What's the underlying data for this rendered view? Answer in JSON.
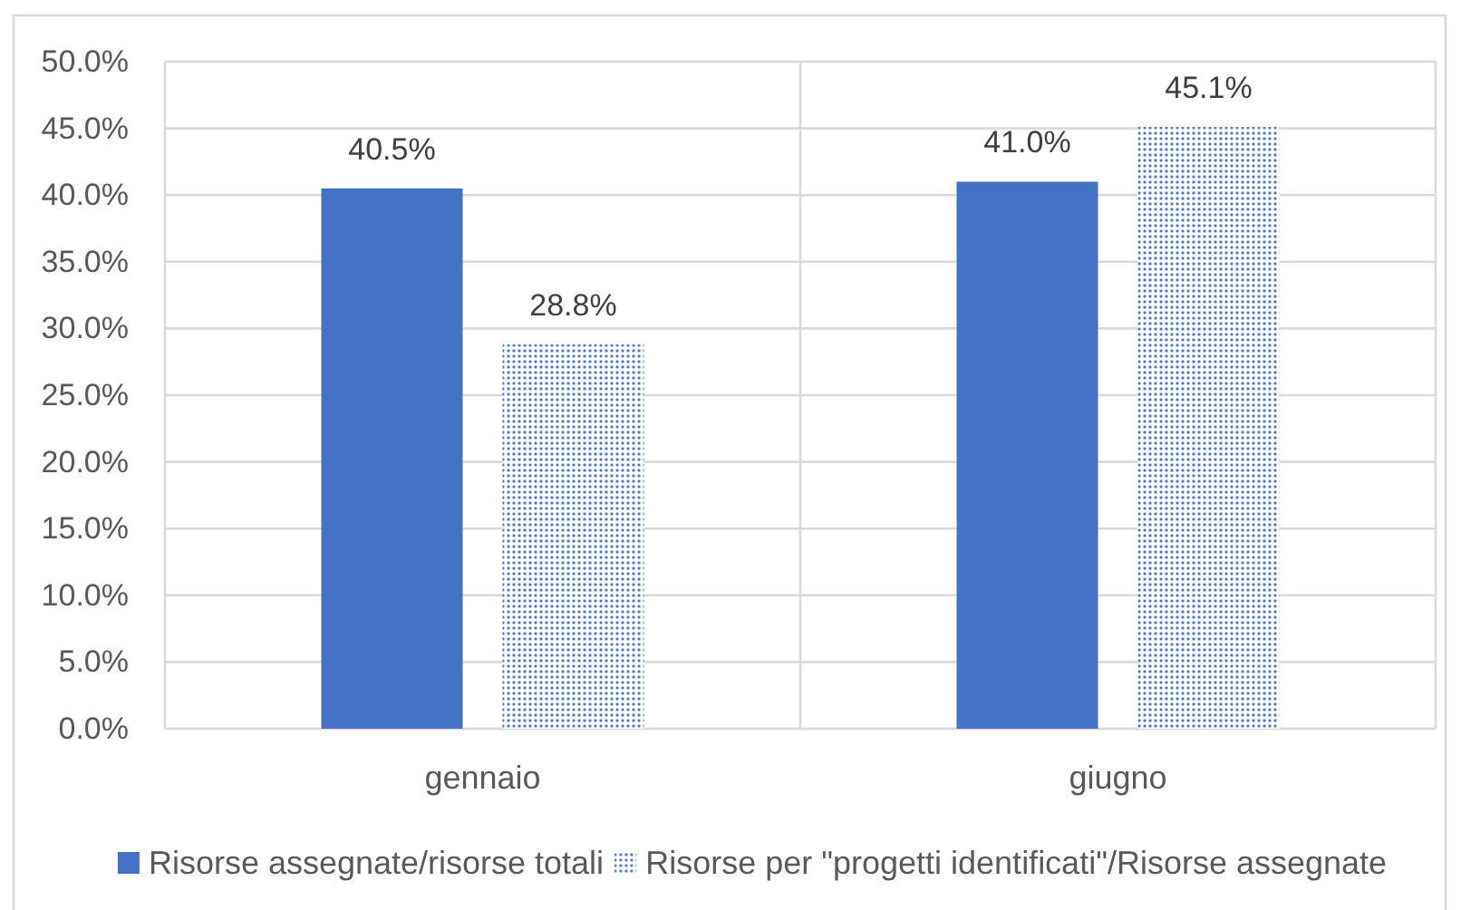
{
  "chart_data": {
    "type": "bar",
    "categories": [
      "gennaio",
      "giugno"
    ],
    "series": [
      {
        "name": "Risorse assegnate/risorse totali",
        "color": "#4472c4",
        "values": [
          40.5,
          41.0
        ],
        "value_labels": [
          "40.5%",
          "41.0%"
        ]
      },
      {
        "name": "Risorse per \"progetti identificati\"/Risorse assegnate",
        "color": "#4472c4",
        "values": [
          28.8,
          45.1
        ],
        "value_labels": [
          "28.8%",
          "45.1%"
        ]
      }
    ],
    "ylim": [
      0,
      50
    ],
    "yticks": [
      {
        "value": 0,
        "label": "0.0%"
      },
      {
        "value": 5,
        "label": "5.0%"
      },
      {
        "value": 10,
        "label": "10.0%"
      },
      {
        "value": 15,
        "label": "15.0%"
      },
      {
        "value": 20,
        "label": "20.0%"
      },
      {
        "value": 25,
        "label": "25.0%"
      },
      {
        "value": 30,
        "label": "30.0%"
      },
      {
        "value": 35,
        "label": "35.0%"
      },
      {
        "value": 40,
        "label": "40.0%"
      },
      {
        "value": 45,
        "label": "45.0%"
      },
      {
        "value": 50,
        "label": "50.0%"
      }
    ],
    "grid": true,
    "legend": "bottom"
  }
}
